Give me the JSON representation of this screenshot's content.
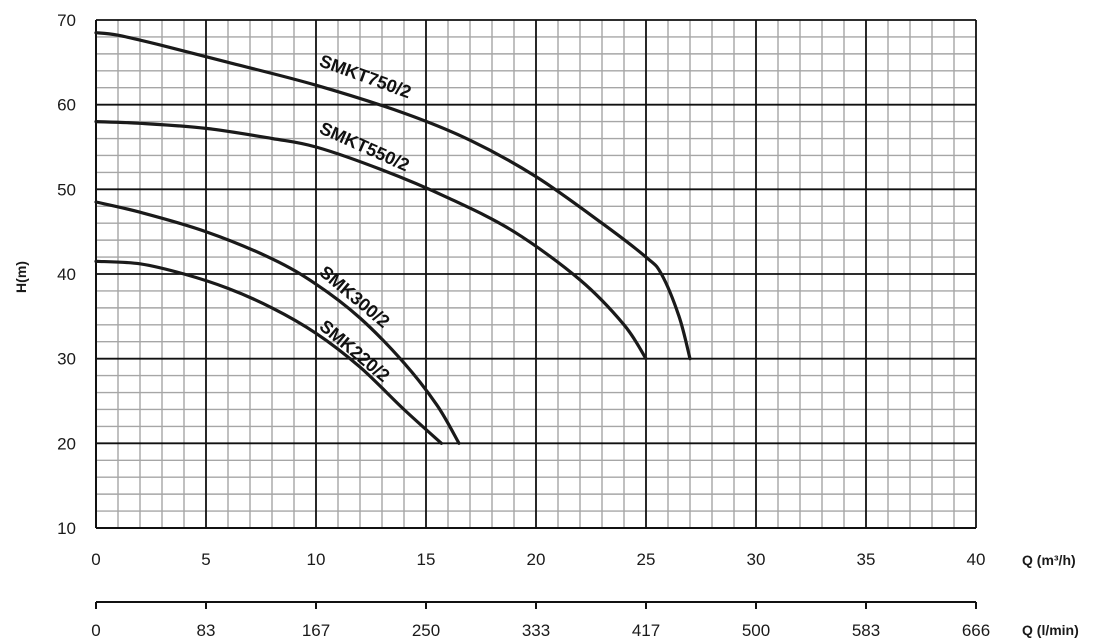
{
  "chart_data": {
    "type": "line",
    "ylabel": "H(m)",
    "xlabel": "Q (m³/h)",
    "x2label": "Q (l/min)",
    "xlim": [
      0,
      40
    ],
    "ylim": [
      10,
      70
    ],
    "x_ticks": [
      "0",
      "5",
      "10",
      "15",
      "20",
      "25",
      "30",
      "35",
      "40"
    ],
    "y_ticks": [
      "10",
      "20",
      "30",
      "40",
      "50",
      "60",
      "70"
    ],
    "x2_ticks": [
      "0",
      "83",
      "167",
      "250",
      "333",
      "417",
      "500",
      "583",
      "666"
    ],
    "grid": true,
    "series": [
      {
        "name": "SMKT750/2",
        "x": [
          0,
          1,
          3,
          6,
          10,
          14,
          17,
          20,
          23,
          25,
          25.7,
          26.5,
          27
        ],
        "y": [
          68.5,
          68.2,
          67,
          65,
          62.3,
          59,
          55.8,
          51.5,
          46,
          42,
          40,
          35,
          30
        ]
      },
      {
        "name": "SMKT550/2",
        "x": [
          0,
          2,
          5,
          8,
          10,
          13,
          16,
          19,
          22,
          24,
          25
        ],
        "y": [
          58,
          57.8,
          57.2,
          56,
          55,
          52.3,
          49,
          45,
          39.3,
          34,
          30
        ]
      },
      {
        "name": "SMK300/2",
        "x": [
          0,
          2,
          5,
          8,
          10,
          12,
          14,
          15.5,
          16.5
        ],
        "y": [
          48.5,
          47.3,
          45,
          41.8,
          38.8,
          34.8,
          29.5,
          24.5,
          20
        ]
      },
      {
        "name": "SMK220/2",
        "x": [
          0,
          2,
          4,
          6,
          8,
          10,
          12,
          14,
          15.7
        ],
        "y": [
          41.5,
          41.2,
          40,
          38.3,
          36,
          33,
          29,
          24,
          20
        ]
      }
    ]
  }
}
